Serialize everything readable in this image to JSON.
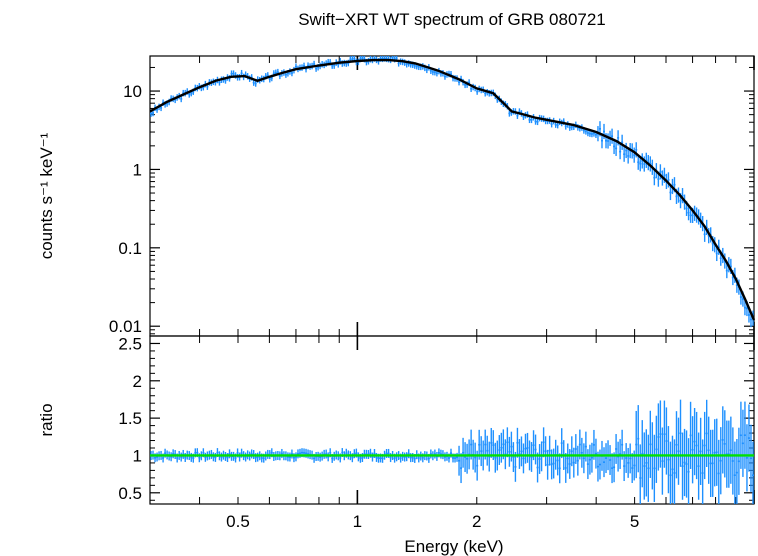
{
  "chart_data": {
    "type": "line",
    "title": "Swift−XRT WT spectrum of GRB 080721",
    "xlabel": "Energy (keV)",
    "x_scale": "log",
    "xlim": [
      0.3,
      10
    ],
    "x_tick_labels": [
      "0.5",
      "1",
      "2",
      "5"
    ],
    "x_tick_values": [
      0.5,
      1,
      2,
      5
    ],
    "colors": {
      "data": "#1e90ff",
      "model": "#000000",
      "unity": "#00e000"
    },
    "grid": false,
    "panels": [
      {
        "name": "spectrum",
        "ylabel": "counts s⁻¹ keV⁻¹",
        "y_scale": "log",
        "ylim": [
          0.0075,
          28
        ],
        "y_tick_labels": [
          "0.01",
          "0.1",
          "1",
          "10"
        ],
        "y_tick_values": [
          0.01,
          0.1,
          1,
          10
        ],
        "series": [
          {
            "role": "data",
            "x": [
              0.3,
              0.33,
              0.36,
              0.4,
              0.44,
              0.48,
              0.52,
              0.56,
              0.6,
              0.65,
              0.7,
              0.8,
              0.9,
              1.0,
              1.1,
              1.2,
              1.3,
              1.4,
              1.5,
              1.6,
              1.8,
              2.0,
              2.2,
              2.35,
              2.45,
              2.6,
              2.8,
              3.0,
              3.5,
              4.0,
              4.5,
              5.0,
              5.5,
              6.0,
              6.5,
              7.0,
              7.5,
              8.0,
              8.5,
              9.0,
              9.5,
              10.0
            ],
            "y": [
              5.2,
              7.0,
              8.6,
              11.0,
              13.5,
              15.5,
              16.0,
              13.0,
              15.0,
              17.0,
              19.0,
              21.0,
              23.0,
              24.5,
              25.0,
              25.0,
              24.0,
              22.5,
              20.0,
              18.0,
              14.0,
              10.5,
              9.0,
              6.5,
              5.2,
              5.0,
              4.4,
              4.2,
              3.6,
              2.9,
              2.2,
              1.6,
              1.05,
              0.68,
              0.45,
              0.29,
              0.18,
              0.105,
              0.065,
              0.038,
              0.02,
              0.01
            ]
          },
          {
            "role": "model",
            "x": [
              0.3,
              0.33,
              0.36,
              0.4,
              0.44,
              0.48,
              0.52,
              0.56,
              0.6,
              0.65,
              0.7,
              0.8,
              0.9,
              1.0,
              1.1,
              1.2,
              1.3,
              1.4,
              1.5,
              1.6,
              1.8,
              2.0,
              2.2,
              2.35,
              2.45,
              2.6,
              2.8,
              3.0,
              3.5,
              4.0,
              4.5,
              5.0,
              5.5,
              6.0,
              6.5,
              7.0,
              7.5,
              8.0,
              8.5,
              9.0,
              9.5,
              10.0
            ],
            "y": [
              5.5,
              7.2,
              8.8,
              11.2,
              13.6,
              15.2,
              15.5,
              13.5,
              15.2,
              17.2,
              19.0,
              21.2,
              23.0,
              24.2,
              24.8,
              24.8,
              24.0,
              22.5,
              20.2,
              18.2,
              14.2,
              10.8,
              9.4,
              6.8,
              5.5,
              5.1,
              4.6,
              4.3,
              3.7,
              3.0,
              2.3,
              1.65,
              1.1,
              0.72,
              0.47,
              0.3,
              0.19,
              0.11,
              0.068,
              0.04,
              0.022,
              0.012
            ]
          }
        ]
      },
      {
        "name": "ratio",
        "ylabel": "ratio",
        "y_scale": "linear",
        "ylim": [
          0.35,
          2.6
        ],
        "y_tick_labels": [
          "0.5",
          "1",
          "1.5",
          "2",
          "2.5"
        ],
        "y_tick_values": [
          0.5,
          1,
          1.5,
          2,
          2.5
        ],
        "reference_line": 1,
        "series": [
          {
            "role": "data",
            "x": [
              0.3,
              0.33,
              0.36,
              0.4,
              0.44,
              0.48,
              0.52,
              0.56,
              0.6,
              0.65,
              0.7,
              0.8,
              0.9,
              1.0,
              1.1,
              1.2,
              1.3,
              1.4,
              1.5,
              1.6,
              1.8,
              2.0,
              2.2,
              2.35,
              2.45,
              2.6,
              2.8,
              3.0,
              3.5,
              4.0,
              4.5,
              5.0,
              5.5,
              6.0,
              6.5,
              7.0,
              7.5,
              8.0,
              8.5,
              9.0,
              9.5,
              10.0
            ],
            "y": [
              0.95,
              1.02,
              0.98,
              1.04,
              0.97,
              1.03,
              0.99,
              0.96,
              1.02,
              0.98,
              1.03,
              0.99,
              1.02,
              1.0,
              0.98,
              1.02,
              0.99,
              1.03,
              0.98,
              1.02,
              0.99,
              1.03,
              1.05,
              0.95,
              1.08,
              0.92,
              1.1,
              0.88,
              1.15,
              0.85,
              1.12,
              0.9,
              1.2,
              0.82,
              1.18,
              0.85,
              1.25,
              0.75,
              1.3,
              0.7,
              1.4,
              0.6
            ]
          }
        ]
      }
    ]
  }
}
